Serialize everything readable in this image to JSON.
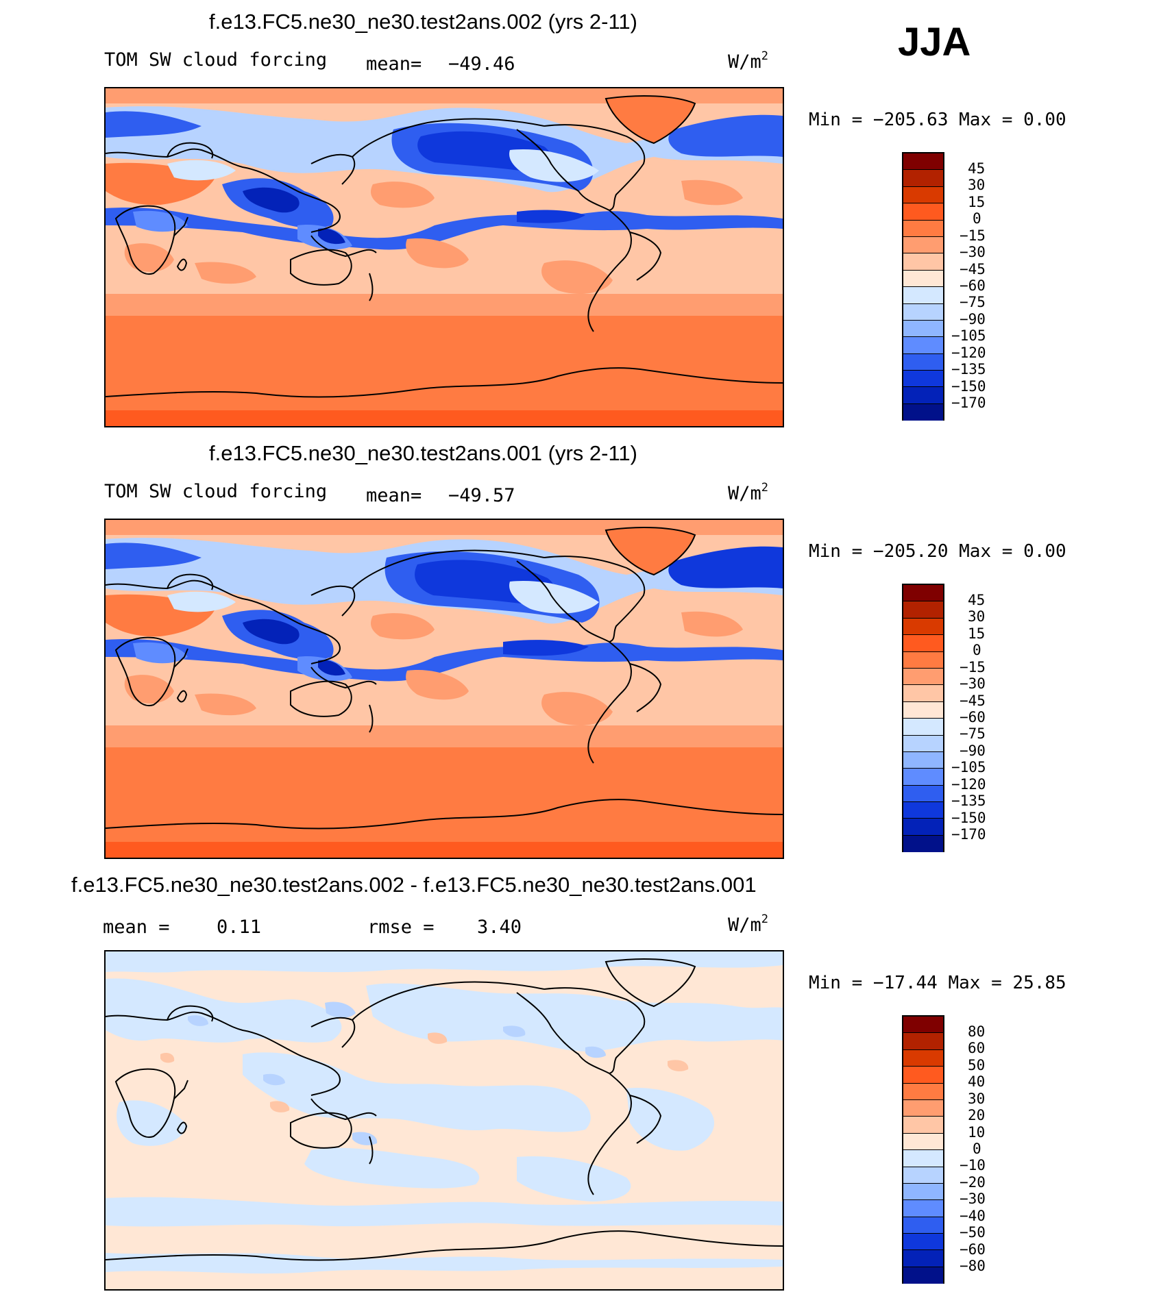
{
  "season": "JJA",
  "panels": [
    {
      "title": "f.e13.FC5.ne30_ne30.test2ans.002 (yrs 2-11)",
      "left_label": "TOM SW cloud forcing",
      "stat_label": "mean=",
      "stat_value": "−49.46",
      "stat2_label": "",
      "stat2_value": "",
      "units_base": "W/m",
      "units_exp": "2",
      "minmax": "Min  =  −205.63  Max  =     0.00",
      "colorbar": {
        "colors": [
          "#7f0000",
          "#b22200",
          "#d93a00",
          "#ff5a1f",
          "#ff7b42",
          "#ff9d70",
          "#ffc6a6",
          "#ffe7d5",
          "#d4e8ff",
          "#b7d3ff",
          "#8fb6ff",
          "#5f8cff",
          "#2f5ef0",
          "#0f38dc",
          "#0322b8",
          "#01118a"
        ],
        "labels": [
          "45",
          "30",
          "15",
          "0",
          "−15",
          "−30",
          "−45",
          "−60",
          "−75",
          "−90",
          "−105",
          "−120",
          "−135",
          "−150",
          "−170"
        ]
      }
    },
    {
      "title": "f.e13.FC5.ne30_ne30.test2ans.001 (yrs 2-11)",
      "left_label": "TOM SW cloud forcing",
      "stat_label": "mean=",
      "stat_value": "−49.57",
      "stat2_label": "",
      "stat2_value": "",
      "units_base": "W/m",
      "units_exp": "2",
      "minmax": "Min  =  −205.20  Max  =     0.00",
      "colorbar": {
        "colors": [
          "#7f0000",
          "#b22200",
          "#d93a00",
          "#ff5a1f",
          "#ff7b42",
          "#ff9d70",
          "#ffc6a6",
          "#ffe7d5",
          "#d4e8ff",
          "#b7d3ff",
          "#8fb6ff",
          "#5f8cff",
          "#2f5ef0",
          "#0f38dc",
          "#0322b8",
          "#01118a"
        ],
        "labels": [
          "45",
          "30",
          "15",
          "0",
          "−15",
          "−30",
          "−45",
          "−60",
          "−75",
          "−90",
          "−105",
          "−120",
          "−135",
          "−150",
          "−170"
        ]
      }
    },
    {
      "title": "f.e13.FC5.ne30_ne30.test2ans.002 - f.e13.FC5.ne30_ne30.test2ans.001",
      "left_label": "",
      "stat_label": "mean  =",
      "stat_value": "0.11",
      "stat2_label": "rmse  =",
      "stat2_value": "3.40",
      "units_base": "W/m",
      "units_exp": "2",
      "minmax": "Min  =  −17.44  Max  =    25.85",
      "colorbar": {
        "colors": [
          "#7f0000",
          "#b22200",
          "#d93a00",
          "#ff5a1f",
          "#ff7b42",
          "#ff9d70",
          "#ffc6a6",
          "#ffe7d5",
          "#d4e8ff",
          "#b7d3ff",
          "#8fb6ff",
          "#5f8cff",
          "#2f5ef0",
          "#0f38dc",
          "#0322b8",
          "#01118a"
        ],
        "labels": [
          "80",
          "60",
          "50",
          "40",
          "30",
          "20",
          "10",
          "0",
          "−10",
          "−20",
          "−30",
          "−40",
          "−50",
          "−60",
          "−80"
        ]
      }
    }
  ]
}
